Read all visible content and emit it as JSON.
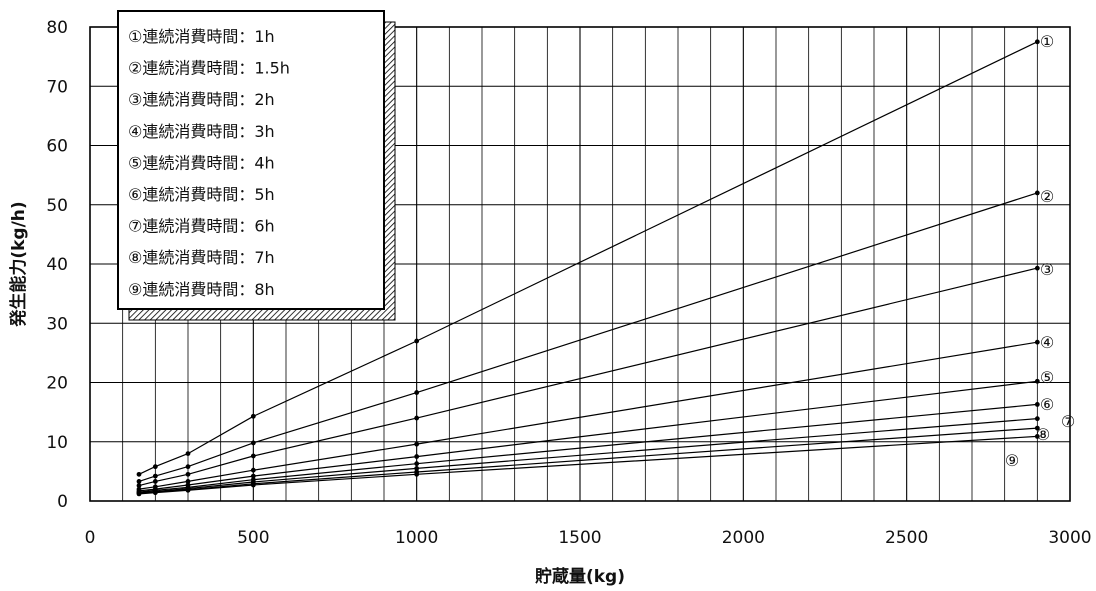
{
  "chart_data": {
    "type": "line",
    "xlabel": "貯蔵量(kg)",
    "ylabel": "発生能力(kg/h)",
    "xlim": [
      0,
      3000
    ],
    "ylim": [
      0,
      80
    ],
    "x_ticks": [
      "0",
      "500",
      "1000",
      "1500",
      "2000",
      "2500",
      "3000"
    ],
    "y_ticks": [
      "0",
      "10",
      "20",
      "30",
      "40",
      "50",
      "60",
      "70",
      "80"
    ],
    "grid": true,
    "legend_position": "top-left",
    "x": [
      150,
      200,
      300,
      500,
      1000,
      2900
    ],
    "series": [
      {
        "name": "①連続消費時間：1h",
        "end_label": "①",
        "values": [
          4.5,
          5.8,
          8.0,
          14.3,
          27.0,
          77.5
        ]
      },
      {
        "name": "②連続消費時間：1.5h",
        "end_label": "②",
        "values": [
          3.3,
          4.2,
          5.8,
          9.8,
          18.3,
          52.0
        ]
      },
      {
        "name": "③連続消費時間：2h",
        "end_label": "③",
        "values": [
          2.6,
          3.3,
          4.5,
          7.6,
          14.0,
          39.3
        ]
      },
      {
        "name": "④連続消費時間：3h",
        "end_label": "④",
        "values": [
          2.0,
          2.4,
          3.3,
          5.2,
          9.6,
          26.8
        ]
      },
      {
        "name": "⑤連続消費時間：4h",
        "end_label": "⑤",
        "values": [
          1.7,
          2.0,
          2.7,
          4.2,
          7.5,
          20.2
        ]
      },
      {
        "name": "⑥連続消費時間：5h",
        "end_label": "⑥",
        "values": [
          1.5,
          1.8,
          2.3,
          3.6,
          6.3,
          16.3
        ]
      },
      {
        "name": "⑦連続消費時間：6h",
        "end_label": "⑦",
        "values": [
          1.4,
          1.6,
          2.1,
          3.2,
          5.5,
          13.9
        ]
      },
      {
        "name": "⑧連続消費時間：7h",
        "end_label": "⑧",
        "values": [
          1.3,
          1.5,
          1.9,
          2.9,
          4.9,
          12.3
        ]
      },
      {
        "name": "⑨連続消費時間：8h",
        "end_label": "⑨",
        "values": [
          1.2,
          1.4,
          1.8,
          2.7,
          4.5,
          10.9
        ]
      }
    ]
  }
}
